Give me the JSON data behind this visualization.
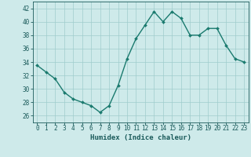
{
  "x": [
    0,
    1,
    2,
    3,
    4,
    5,
    6,
    7,
    8,
    9,
    10,
    11,
    12,
    13,
    14,
    15,
    16,
    17,
    18,
    19,
    20,
    21,
    22,
    23
  ],
  "y": [
    33.5,
    32.5,
    31.5,
    29.5,
    28.5,
    28.0,
    27.5,
    26.5,
    27.5,
    30.5,
    34.5,
    37.5,
    39.5,
    41.5,
    40.0,
    41.5,
    40.5,
    38.0,
    38.0,
    39.0,
    39.0,
    36.5,
    34.5,
    34.0
  ],
  "xlim": [
    -0.5,
    23.5
  ],
  "ylim": [
    25.0,
    43.0
  ],
  "yticks": [
    26,
    28,
    30,
    32,
    34,
    36,
    38,
    40,
    42
  ],
  "xticks": [
    0,
    1,
    2,
    3,
    4,
    5,
    6,
    7,
    8,
    9,
    10,
    11,
    12,
    13,
    14,
    15,
    16,
    17,
    18,
    19,
    20,
    21,
    22,
    23
  ],
  "xlabel": "Humidex (Indice chaleur)",
  "line_color": "#1a7a6e",
  "marker_color": "#1a7a6e",
  "bg_color": "#ceeaea",
  "grid_color": "#a0cccc",
  "axis_color": "#1a5a5a",
  "xlabel_fontsize": 6.5,
  "tick_fontsize": 5.5,
  "linewidth": 1.0,
  "markersize": 2.0
}
